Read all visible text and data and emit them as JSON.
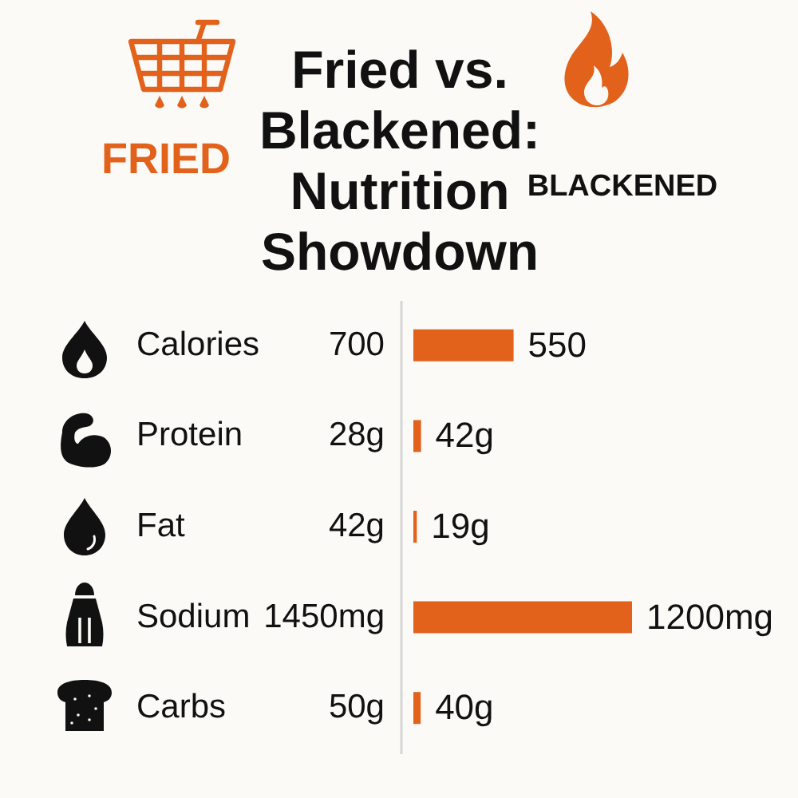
{
  "chart_data": {
    "type": "bar",
    "orientation": "horizontal",
    "title": "Fried vs. Blackened: Nutrition Showdown",
    "categories": [
      "Calories",
      "Protein",
      "Fat",
      "Sodium",
      "Carbs"
    ],
    "values": [
      550,
      42,
      19,
      1200,
      40
    ],
    "value_labels": [
      "550",
      "42g",
      "19g",
      "1200mg",
      "40g"
    ],
    "color": "#e2621c",
    "annotations": [
      "FRIED",
      "BLACKENED",
      "700",
      "28g",
      "42g",
      "1450mg",
      "50g"
    ]
  }
}
